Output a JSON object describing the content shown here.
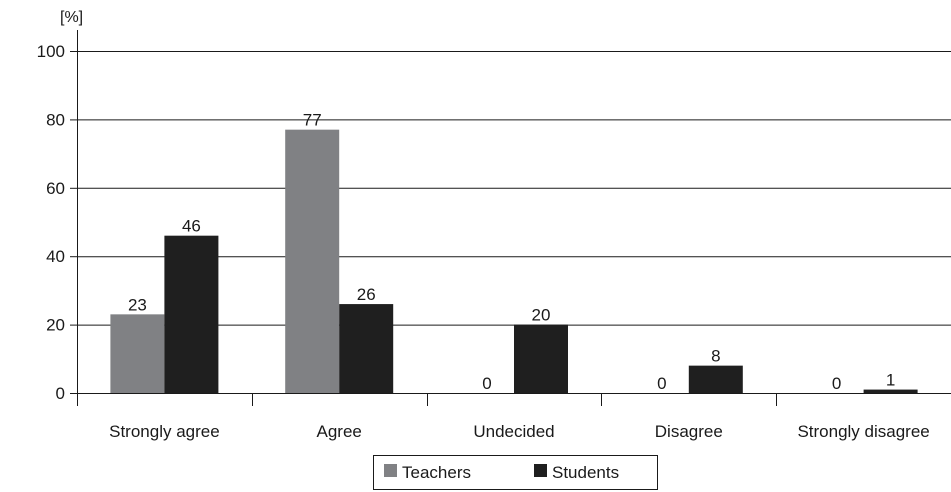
{
  "chart_data": {
    "type": "bar",
    "ylabel": "[%]",
    "ylim": [
      0,
      100
    ],
    "yticks": [
      0,
      20,
      40,
      60,
      80,
      100
    ],
    "grid": true,
    "legend_position": "bottom-center",
    "categories": [
      "Strongly agree",
      "Agree",
      "Undecided",
      "Disagree",
      "Strongly disagree"
    ],
    "series": [
      {
        "name": "Teachers",
        "values": [
          23,
          77,
          0,
          0,
          0
        ],
        "color": "#808184"
      },
      {
        "name": "Students",
        "values": [
          46,
          26,
          20,
          8,
          1
        ],
        "color": "#1f1f1f"
      }
    ]
  }
}
